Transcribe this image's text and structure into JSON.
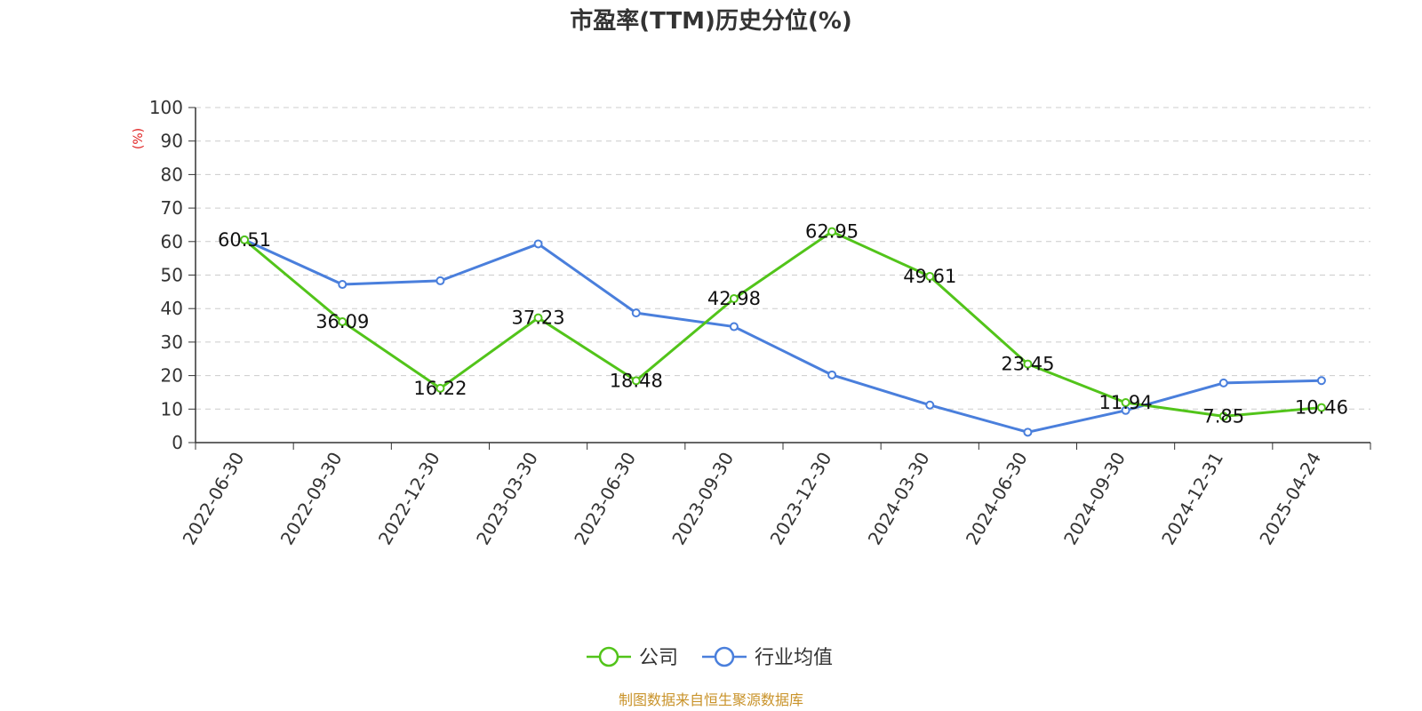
{
  "chart_data": {
    "type": "line",
    "title": "市盈率(TTM)历史分位(%)",
    "ylabel": "(%)",
    "ylim": [
      0,
      100
    ],
    "yticks": [
      0,
      10,
      20,
      30,
      40,
      50,
      60,
      70,
      80,
      90,
      100
    ],
    "grid": true,
    "legend_position": "bottom",
    "categories": [
      "2022-06-30",
      "2022-09-30",
      "2022-12-30",
      "2023-03-30",
      "2023-06-30",
      "2023-09-30",
      "2023-12-30",
      "2024-03-30",
      "2024-06-30",
      "2024-09-30",
      "2024-12-31",
      "2025-04-24"
    ],
    "series": [
      {
        "name": "公司",
        "color": "#52c41a",
        "values": [
          60.51,
          36.09,
          16.22,
          37.23,
          18.48,
          42.98,
          62.95,
          49.61,
          23.45,
          11.94,
          7.85,
          10.46
        ],
        "labels": [
          "60.51",
          "36.09",
          "16.22",
          "37.23",
          "18.48",
          "42.98",
          "62.95",
          "49.61",
          "23.45",
          "11.94",
          "7.85",
          "10.46"
        ]
      },
      {
        "name": "行业均值",
        "color": "#4a7fdc",
        "values": [
          60.5,
          47.2,
          48.3,
          59.3,
          38.7,
          34.6,
          20.2,
          11.2,
          3.1,
          9.6,
          17.8,
          18.5
        ]
      }
    ],
    "source": "制图数据来自恒生聚源数据库",
    "source_color": "#c9932a",
    "ylabel_color": "#e02020"
  }
}
